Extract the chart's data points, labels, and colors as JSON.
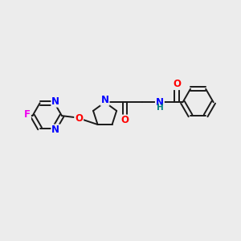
{
  "background_color": "#ececec",
  "bond_color": "#1a1a1a",
  "N_color": "#0000ff",
  "O_color": "#ff0000",
  "F_color": "#ee00ee",
  "NH_color": "#008080",
  "figsize": [
    3.0,
    3.0
  ],
  "dpi": 100,
  "xlim": [
    0,
    10
  ],
  "ylim": [
    0,
    10
  ]
}
